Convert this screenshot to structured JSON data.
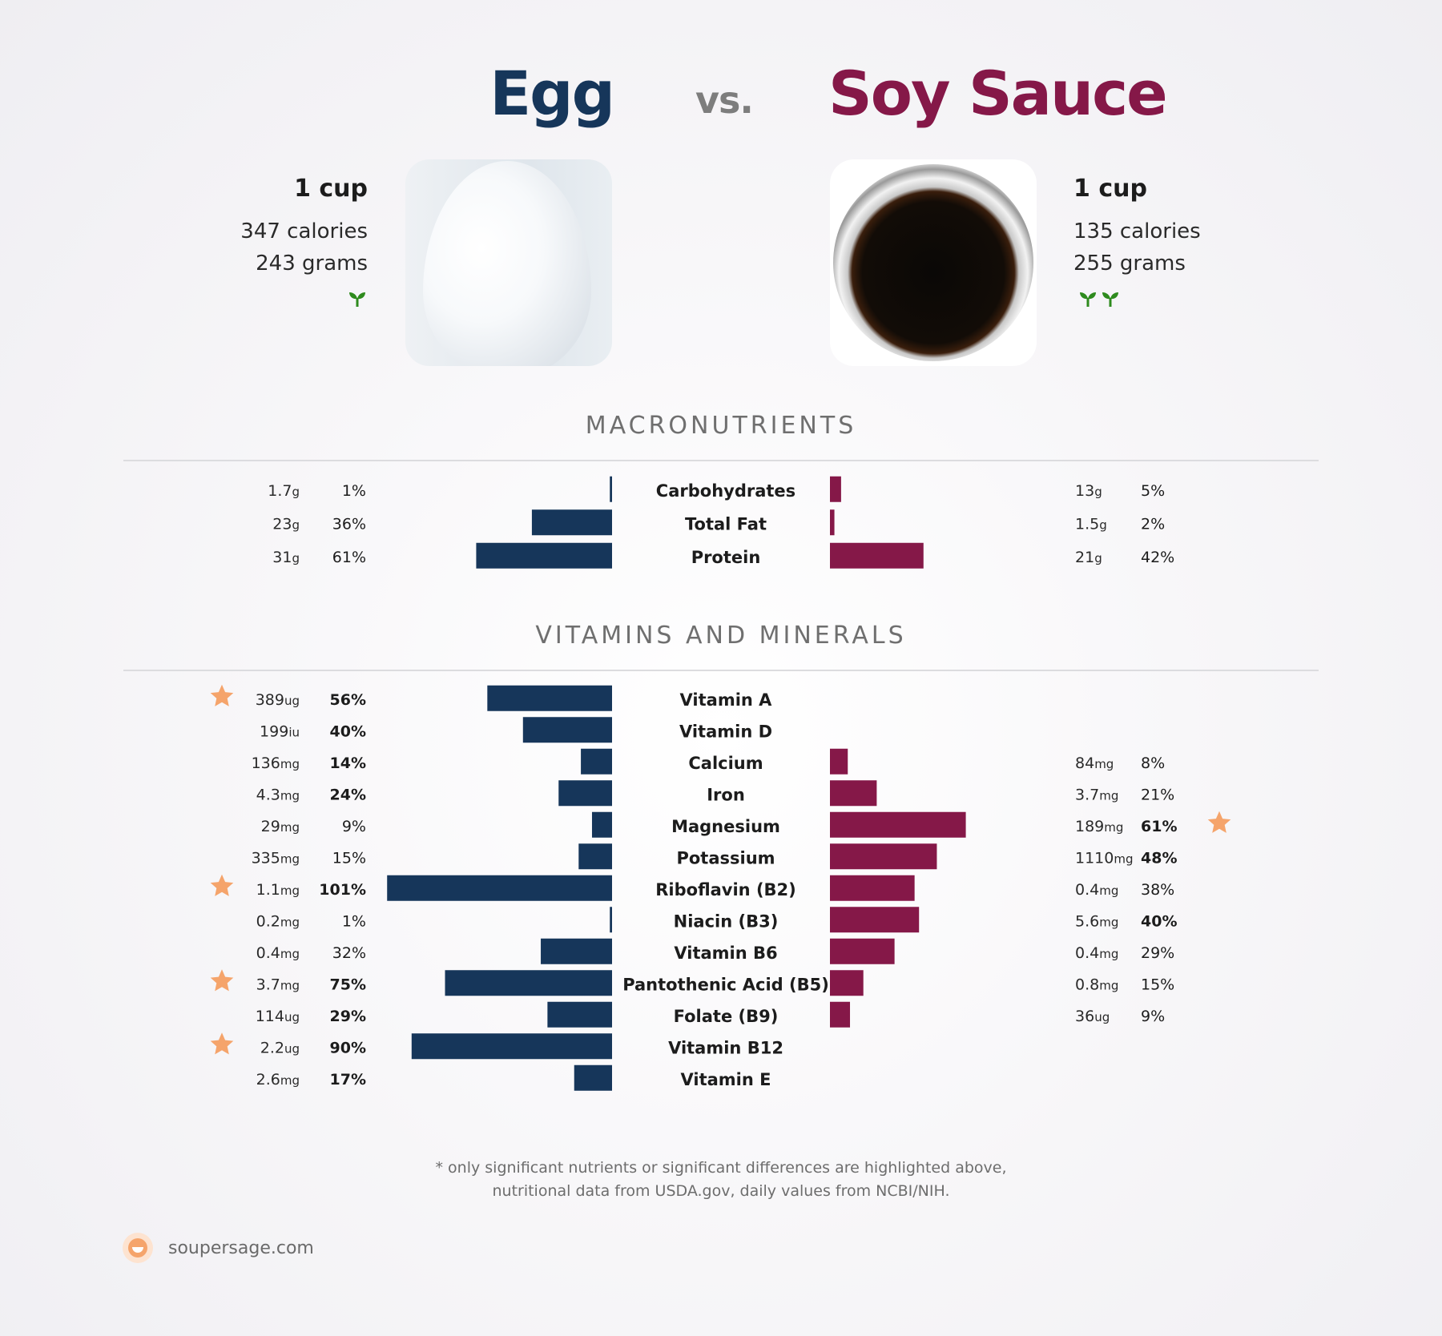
{
  "header": {
    "left_name": "Egg",
    "vs": "vs.",
    "right_name": "Soy Sauce"
  },
  "left_food": {
    "serving": "1 cup",
    "calories": "347 calories",
    "grams": "243 grams",
    "sprout_count": 1,
    "image_icon": "egg-photo"
  },
  "right_food": {
    "serving": "1 cup",
    "calories": "135 calories",
    "grams": "255 grams",
    "sprout_count": 2,
    "image_icon": "soy-sauce-bowl-photo"
  },
  "sections": {
    "macros_title": "MACRONUTRIENTS",
    "vitamins_title": "VITAMINS AND MINERALS"
  },
  "colors": {
    "left": "#16365a",
    "right": "#851848",
    "star": "#f5a46b",
    "sprout": "#2e8b1e"
  },
  "chart_data": [
    {
      "type": "bar",
      "title": "MACRONUTRIENTS",
      "categories": [
        "Carbohydrates",
        "Total Fat",
        "Protein"
      ],
      "series": [
        {
          "name": "Egg",
          "values": [
            1,
            36,
            61
          ],
          "amounts": [
            "1.7",
            "23",
            "31"
          ],
          "units": [
            "g",
            "g",
            "g"
          ],
          "bold": [
            false,
            false,
            false
          ],
          "star": [
            false,
            false,
            false
          ]
        },
        {
          "name": "Soy Sauce",
          "values": [
            5,
            2,
            42
          ],
          "amounts": [
            "13",
            "1.5",
            "21"
          ],
          "units": [
            "g",
            "g",
            "g"
          ],
          "bold": [
            false,
            false,
            false
          ],
          "star": [
            false,
            false,
            false
          ]
        }
      ]
    },
    {
      "type": "bar",
      "title": "VITAMINS AND MINERALS",
      "categories": [
        "Vitamin A",
        "Vitamin D",
        "Calcium",
        "Iron",
        "Magnesium",
        "Potassium",
        "Riboflavin (B2)",
        "Niacin (B3)",
        "Vitamin B6",
        "Pantothenic Acid (B5)",
        "Folate (B9)",
        "Vitamin B12",
        "Vitamin E"
      ],
      "series": [
        {
          "name": "Egg",
          "values": [
            56,
            40,
            14,
            24,
            9,
            15,
            101,
            1,
            32,
            75,
            29,
            90,
            17
          ],
          "amounts": [
            "389",
            "199",
            "136",
            "4.3",
            "29",
            "335",
            "1.1",
            "0.2",
            "0.4",
            "3.7",
            "114",
            "2.2",
            "2.6"
          ],
          "units": [
            "ug",
            "iu",
            "mg",
            "mg",
            "mg",
            "mg",
            "mg",
            "mg",
            "mg",
            "mg",
            "ug",
            "ug",
            "mg"
          ],
          "bold": [
            true,
            true,
            true,
            true,
            false,
            false,
            true,
            false,
            false,
            true,
            true,
            true,
            true
          ],
          "star": [
            true,
            false,
            false,
            false,
            false,
            false,
            true,
            false,
            false,
            true,
            false,
            true,
            false
          ]
        },
        {
          "name": "Soy Sauce",
          "values": [
            null,
            null,
            8,
            21,
            61,
            48,
            38,
            40,
            29,
            15,
            9,
            null,
            null
          ],
          "amounts": [
            null,
            null,
            "84",
            "3.7",
            "189",
            "1110",
            "0.4",
            "5.6",
            "0.4",
            "0.8",
            "36",
            null,
            null
          ],
          "units": [
            null,
            null,
            "mg",
            "mg",
            "mg",
            "mg",
            "mg",
            "mg",
            "mg",
            "mg",
            "ug",
            null,
            null
          ],
          "bold": [
            false,
            false,
            false,
            false,
            true,
            true,
            false,
            true,
            false,
            false,
            false,
            false,
            false
          ],
          "star": [
            false,
            false,
            false,
            false,
            true,
            false,
            false,
            false,
            false,
            false,
            false,
            false,
            false
          ]
        }
      ]
    }
  ],
  "footer": {
    "note_line1": "* only significant nutrients or significant differences are highlighted above,",
    "note_line2": "nutritional data from USDA.gov, daily values from NCBI/NIH.",
    "brand": "soupersage.com"
  }
}
